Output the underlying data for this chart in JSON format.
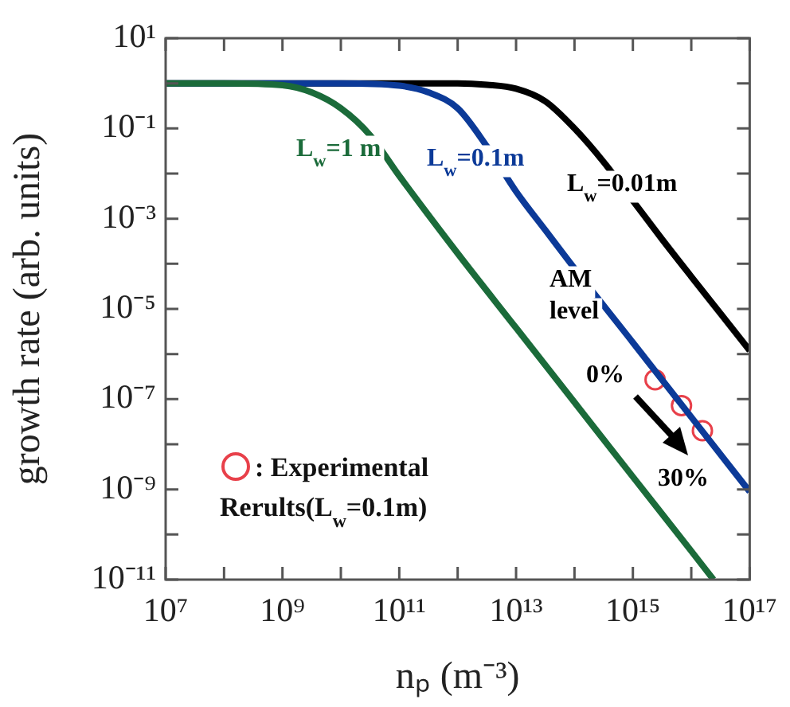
{
  "chart_data": {
    "type": "line",
    "xlabel": "nₚ (m⁻³)",
    "ylabel": "growth rate (arb. units)",
    "log": "xy",
    "grid": false,
    "legend": "bottom left",
    "line_style": "solid",
    "xlim": [
      10000000.0,
      1e+17
    ],
    "ylim": [
      1e-11,
      10
    ],
    "xticks": [
      {
        "value": 10000000.0,
        "label": "10⁷"
      },
      {
        "value": 100000000.0,
        "label": null
      },
      {
        "value": 1000000000.0,
        "label": "10⁹"
      },
      {
        "value": 10000000000.0,
        "label": null
      },
      {
        "value": 100000000000.0,
        "label": "10¹¹"
      },
      {
        "value": 1000000000000.0,
        "label": null
      },
      {
        "value": 10000000000000.0,
        "label": "10¹³"
      },
      {
        "value": 100000000000000.0,
        "label": null
      },
      {
        "value": 1000000000000000.0,
        "label": "10¹⁵"
      },
      {
        "value": 1e+16,
        "label": null
      },
      {
        "value": 1e+17,
        "label": "10¹⁷"
      }
    ],
    "yticks": [
      {
        "value": 10,
        "label": "10¹"
      },
      {
        "value": 1,
        "label": null
      },
      {
        "value": 0.1,
        "label": "10⁻¹"
      },
      {
        "value": 0.01,
        "label": null
      },
      {
        "value": 0.001,
        "label": "10⁻³"
      },
      {
        "value": 0.0001,
        "label": null
      },
      {
        "value": 1e-05,
        "label": "10⁻⁵"
      },
      {
        "value": 1e-06,
        "label": null
      },
      {
        "value": 1e-07,
        "label": "10⁻⁷"
      },
      {
        "value": 1e-08,
        "label": null
      },
      {
        "value": 1e-09,
        "label": "10⁻⁹"
      },
      {
        "value": 1e-10,
        "label": null
      },
      {
        "value": 1e-11,
        "label": "10⁻¹¹"
      }
    ],
    "series": [
      {
        "name": "L$_{w}$=1 m",
        "color": "#1b6b3a",
        "x": [
          10000000.0,
          100000000.0,
          1000000000.0,
          3160000000.0,
          10000000000.0,
          31600000000.0,
          100000000000.0,
          1000000000000.0,
          10000000000000.0,
          100000000000000.0,
          1000000000000000.0,
          1e+16,
          2.4e+16
        ],
        "values": [
          1,
          1,
          0.91,
          0.63,
          0.28,
          0.071,
          0.0089,
          0.00017,
          3.8e-06,
          8.5e-08,
          1.9e-09,
          4.3e-11,
          1e-11
        ]
      },
      {
        "name": "L$_{w}$=0.1m",
        "color": "#0c3a98",
        "x": [
          10000000.0,
          10000000000.0,
          100000000000.0,
          316000000000.0,
          1000000000000.0,
          3160000000000.0,
          10000000000000.0,
          31600000000000.0,
          100000000000000.0,
          1000000000000000.0,
          1e+16,
          1e+17
        ],
        "values": [
          1,
          1,
          0.89,
          0.63,
          0.28,
          0.04,
          0.004,
          0.00056,
          7.9e-05,
          1.8e-06,
          4e-08,
          8.9e-10
        ]
      },
      {
        "name": "L$_{w}$=0.01m",
        "color": "#000000",
        "x": [
          10000000.0,
          1000000000000.0,
          3160000000000.0,
          10000000000000.0,
          31600000000000.0,
          100000000000000.0,
          316000000000000.0,
          1000000000000000.0,
          3160000000000000.0,
          1e+16,
          3.16e+16,
          1e+17
        ],
        "values": [
          1,
          1,
          0.93,
          0.76,
          0.4,
          0.1,
          0.018,
          0.0025,
          0.00035,
          5.2e-05,
          7.9e-06,
          1.2e-06
        ]
      },
      {
        "name": ": Experimental Rerults(L$_{w}$=0.1m)",
        "type": "scatter",
        "marker": "circle",
        "color": "#e8404a",
        "x": [
          2400000000000000.0,
          6800000000000000.0,
          1.55e+16
        ],
        "values": [
          2.7e-07,
          7.2e-08,
          2e-08
        ]
      }
    ],
    "annotations": [
      "AM level",
      "0%",
      "30%"
    ]
  }
}
